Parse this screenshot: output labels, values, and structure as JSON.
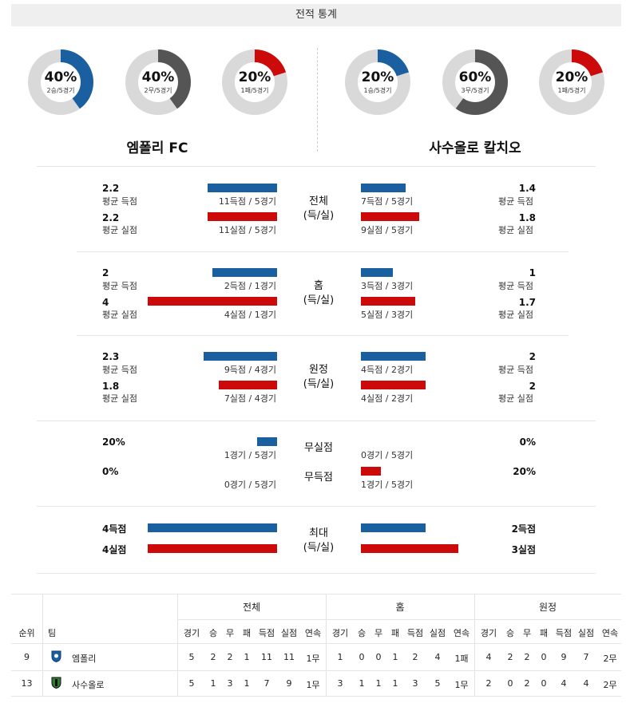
{
  "title": "전적 통계",
  "teams": {
    "home": {
      "name": "엠폴리 FC"
    },
    "away": {
      "name": "사수올로 칼치오"
    }
  },
  "donuts": [
    {
      "pct": "40%",
      "sub": "2승/5경기",
      "value": 0.4,
      "color": "#1a5fa0"
    },
    {
      "pct": "40%",
      "sub": "2무/5경기",
      "value": 0.4,
      "color": "#555555"
    },
    {
      "pct": "20%",
      "sub": "1패/5경기",
      "value": 0.2,
      "color": "#cc0a0a"
    },
    {
      "pct": "20%",
      "sub": "1승/5경기",
      "value": 0.2,
      "color": "#1a5fa0"
    },
    {
      "pct": "60%",
      "sub": "3무/5경기",
      "value": 0.6,
      "color": "#555555"
    },
    {
      "pct": "20%",
      "sub": "1패/5경기",
      "value": 0.2,
      "color": "#cc0a0a"
    }
  ],
  "sections": [
    {
      "center1": "전체",
      "center2": "(득/실)",
      "home": {
        "scored": {
          "val": "2.2",
          "lbl": "평균 득점",
          "detail": "11득점 / 5경기",
          "ratio": 0.53
        },
        "conceded": {
          "val": "2.2",
          "lbl": "평균 실점",
          "detail": "11실점 / 5경기",
          "ratio": 0.53
        }
      },
      "away": {
        "scored": {
          "val": "1.4",
          "lbl": "평균 득점",
          "detail": "7득점 / 5경기",
          "ratio": 0.34
        },
        "conceded": {
          "val": "1.8",
          "lbl": "평균 실점",
          "detail": "9실점 / 5경기",
          "ratio": 0.44
        }
      }
    },
    {
      "center1": "홈",
      "center2": "(득/실)",
      "home": {
        "scored": {
          "val": "2",
          "lbl": "평균 득점",
          "detail": "2득점 / 1경기",
          "ratio": 0.49
        },
        "conceded": {
          "val": "4",
          "lbl": "평균 실점",
          "detail": "4실점 / 1경기",
          "ratio": 0.98
        }
      },
      "away": {
        "scored": {
          "val": "1",
          "lbl": "평균 득점",
          "detail": "3득점 / 3경기",
          "ratio": 0.24
        },
        "conceded": {
          "val": "1.7",
          "lbl": "평균 실점",
          "detail": "5실점 / 3경기",
          "ratio": 0.41
        }
      }
    },
    {
      "center1": "원정",
      "center2": "(득/실)",
      "home": {
        "scored": {
          "val": "2.3",
          "lbl": "평균 득점",
          "detail": "9득점 / 4경기",
          "ratio": 0.56
        },
        "conceded": {
          "val": "1.8",
          "lbl": "평균 실점",
          "detail": "7실점 / 4경기",
          "ratio": 0.44
        }
      },
      "away": {
        "scored": {
          "val": "2",
          "lbl": "평균 득점",
          "detail": "4득점 / 2경기",
          "ratio": 0.49
        },
        "conceded": {
          "val": "2",
          "lbl": "평균 실점",
          "detail": "4실점 / 2경기",
          "ratio": 0.49
        }
      }
    }
  ],
  "cleansheet": {
    "center_a": "무실점",
    "center_b": "무득점",
    "home": {
      "a_val": "20%",
      "a_detail": "1경기 / 5경기",
      "a_ratio": 0.15,
      "b_val": "0%",
      "b_detail": "0경기 / 5경기",
      "b_ratio": 0
    },
    "away": {
      "a_val": "0%",
      "a_detail": "0경기 / 5경기",
      "a_ratio": 0,
      "b_val": "20%",
      "b_detail": "1경기 / 5경기",
      "b_ratio": 0.15
    }
  },
  "max": {
    "center1": "최대",
    "center2": "(득/실)",
    "home": {
      "scored": "4득점",
      "conceded": "4실점",
      "s_ratio": 0.98,
      "c_ratio": 0.98
    },
    "away": {
      "scored": "2득점",
      "conceded": "3실점",
      "s_ratio": 0.49,
      "c_ratio": 0.74
    }
  },
  "table": {
    "groups": [
      "전체",
      "홈",
      "원정"
    ],
    "rank_header": "순위",
    "team_header": "팀",
    "cols": [
      "경기",
      "승",
      "무",
      "패",
      "득점",
      "실점",
      "연속"
    ],
    "rows": [
      {
        "rank": "9",
        "team": "엠폴리",
        "logo_color": "#1a5fa0",
        "all": [
          "5",
          "2",
          "2",
          "1",
          "11",
          "11",
          "1무"
        ],
        "home": [
          "1",
          "0",
          "0",
          "1",
          "2",
          "4",
          "1패"
        ],
        "away": [
          "4",
          "2",
          "2",
          "0",
          "9",
          "7",
          "2무"
        ]
      },
      {
        "rank": "13",
        "team": "사수올로",
        "logo_color": "#2e7d32",
        "all": [
          "5",
          "1",
          "3",
          "1",
          "7",
          "9",
          "1무"
        ],
        "home": [
          "3",
          "1",
          "1",
          "1",
          "3",
          "5",
          "1무"
        ],
        "away": [
          "2",
          "0",
          "2",
          "0",
          "4",
          "4",
          "2무"
        ]
      }
    ]
  }
}
